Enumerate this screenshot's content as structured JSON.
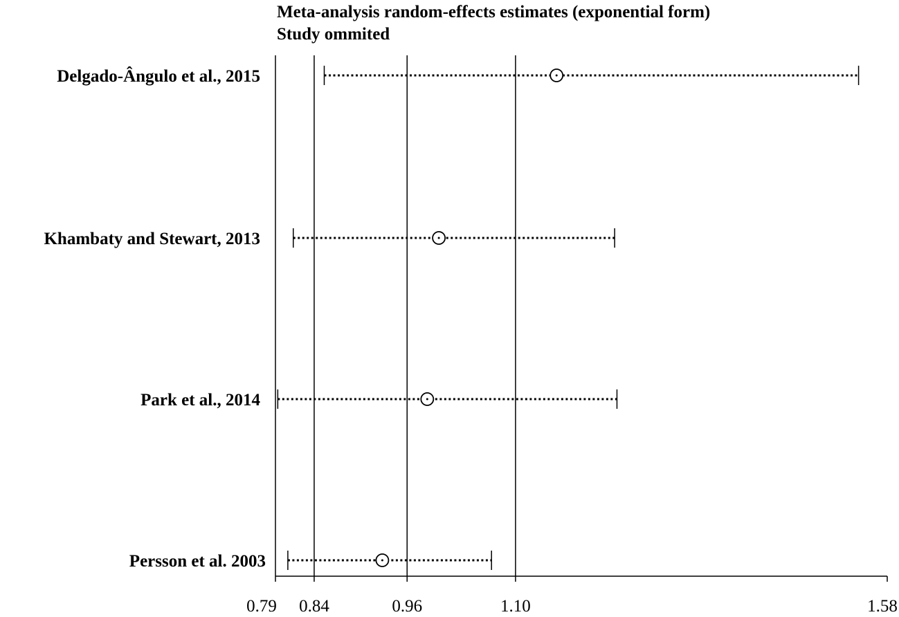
{
  "chart_data": {
    "type": "forest",
    "title": "Meta-analysis random-effects estimates (exponential form)",
    "subtitle": "Study ommited",
    "xlim": [
      0.79,
      1.58
    ],
    "x_ticks": [
      0.79,
      0.84,
      0.96,
      1.1,
      1.58
    ],
    "x_tick_labels": [
      "0.79",
      "0.84",
      "0.96",
      "1.10",
      "1.58"
    ],
    "reference_lines": [
      0.79,
      0.84,
      0.96,
      1.1
    ],
    "studies": [
      {
        "label": "Delgado-Ângulo et al., 2015",
        "estimate": 1.153,
        "lower": 0.853,
        "upper": 1.543
      },
      {
        "label": "Khambaty and Stewart, 2013",
        "estimate": 1.001,
        "lower": 0.813,
        "upper": 1.228
      },
      {
        "label": "Park et al., 2014",
        "estimate": 0.986,
        "lower": 0.793,
        "upper": 1.231
      },
      {
        "label": "Persson et al. 2003",
        "estimate": 0.928,
        "lower": 0.806,
        "upper": 1.069
      }
    ],
    "marker_colors": {
      "line": "#000000",
      "marker": "#000000",
      "background": "#ffffff"
    }
  }
}
